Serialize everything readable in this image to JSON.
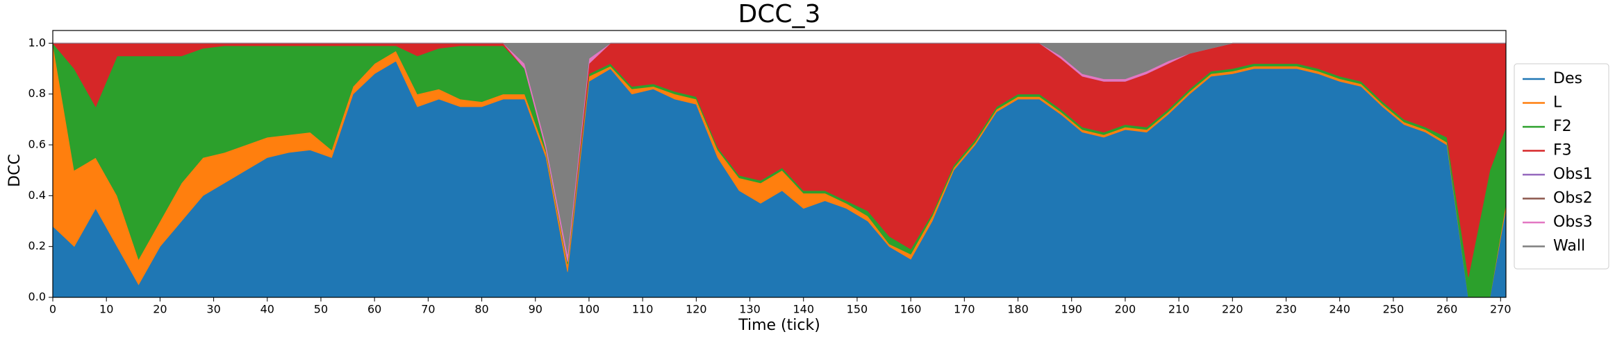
{
  "chart_data": {
    "type": "stackplot",
    "title": "DCC_3",
    "x_label": "Time (tick)",
    "y_label": "DCC",
    "xlim": [
      0,
      271
    ],
    "ylim": [
      0,
      1.05
    ],
    "xticks": [
      0,
      10,
      20,
      30,
      40,
      50,
      60,
      70,
      80,
      90,
      100,
      110,
      120,
      130,
      140,
      150,
      160,
      170,
      180,
      190,
      200,
      210,
      220,
      230,
      240,
      250,
      260,
      270
    ],
    "yticks": [
      {
        "value": 0,
        "label": "0.0"
      },
      {
        "value": 0.2,
        "label": "0.2"
      },
      {
        "value": 0.4,
        "label": "0.4"
      },
      {
        "value": 0.6,
        "label": "0.6"
      },
      {
        "value": 0.8,
        "label": "0.8"
      },
      {
        "value": 1,
        "label": "1.0"
      }
    ],
    "legend": "outside right",
    "x": [
      0,
      4,
      8,
      12,
      16,
      20,
      24,
      28,
      32,
      36,
      40,
      44,
      48,
      52,
      56,
      60,
      64,
      68,
      72,
      76,
      80,
      84,
      88,
      92,
      96,
      100,
      104,
      108,
      112,
      116,
      120,
      124,
      128,
      132,
      136,
      140,
      144,
      148,
      152,
      156,
      160,
      164,
      168,
      172,
      176,
      180,
      184,
      188,
      192,
      196,
      200,
      204,
      208,
      212,
      216,
      220,
      224,
      228,
      232,
      236,
      240,
      244,
      248,
      252,
      256,
      260,
      264,
      268,
      271
    ],
    "series": [
      {
        "name": "Des",
        "color": "#1f77b4",
        "values": [
          0.28,
          0.2,
          0.35,
          0.2,
          0.05,
          0.2,
          0.3,
          0.4,
          0.45,
          0.5,
          0.55,
          0.57,
          0.58,
          0.55,
          0.8,
          0.88,
          0.93,
          0.75,
          0.78,
          0.75,
          0.75,
          0.78,
          0.78,
          0.55,
          0.1,
          0.85,
          0.9,
          0.8,
          0.82,
          0.78,
          0.76,
          0.55,
          0.42,
          0.37,
          0.42,
          0.35,
          0.38,
          0.35,
          0.3,
          0.2,
          0.15,
          0.3,
          0.5,
          0.6,
          0.73,
          0.78,
          0.78,
          0.72,
          0.65,
          0.63,
          0.66,
          0.65,
          0.72,
          0.8,
          0.87,
          0.88,
          0.9,
          0.9,
          0.9,
          0.88,
          0.85,
          0.83,
          0.75,
          0.68,
          0.65,
          0.6,
          0,
          0,
          0.35
        ]
      },
      {
        "name": "L",
        "color": "#ff7f0e",
        "values": [
          0.72,
          0.3,
          0.2,
          0.2,
          0.1,
          0.1,
          0.15,
          0.15,
          0.12,
          0.1,
          0.08,
          0.07,
          0.07,
          0.03,
          0.03,
          0.04,
          0.04,
          0.05,
          0.04,
          0.03,
          0.02,
          0.02,
          0.02,
          0.02,
          0.03,
          0.02,
          0.01,
          0.02,
          0.01,
          0.02,
          0.02,
          0.03,
          0.05,
          0.08,
          0.08,
          0.06,
          0.03,
          0.02,
          0.02,
          0.01,
          0.02,
          0.02,
          0.01,
          0.01,
          0.01,
          0.01,
          0.01,
          0.01,
          0.01,
          0.01,
          0.01,
          0.01,
          0.01,
          0.01,
          0.01,
          0.01,
          0.01,
          0.01,
          0.01,
          0.01,
          0.01,
          0.01,
          0.01,
          0.01,
          0.01,
          0.01,
          0,
          0,
          0.02
        ]
      },
      {
        "name": "F2",
        "color": "#2ca02c",
        "values": [
          0,
          0.4,
          0.2,
          0.55,
          0.8,
          0.65,
          0.5,
          0.43,
          0.42,
          0.39,
          0.36,
          0.35,
          0.34,
          0.41,
          0.16,
          0.07,
          0.02,
          0.15,
          0.16,
          0.21,
          0.22,
          0.19,
          0.1,
          0.01,
          0.01,
          0.01,
          0.01,
          0.01,
          0.01,
          0.01,
          0.01,
          0.01,
          0.01,
          0.01,
          0.01,
          0.01,
          0.01,
          0.01,
          0.02,
          0.03,
          0.02,
          0.01,
          0.01,
          0.01,
          0.01,
          0.01,
          0.01,
          0.01,
          0.01,
          0.01,
          0.01,
          0.01,
          0.01,
          0.01,
          0.01,
          0.01,
          0.01,
          0.01,
          0.01,
          0.01,
          0.01,
          0.01,
          0.01,
          0.01,
          0.01,
          0.02,
          0.08,
          0.5,
          0.3
        ]
      },
      {
        "name": "F3",
        "color": "#d62728",
        "values": [
          0,
          0.1,
          0.25,
          0.05,
          0.05,
          0.05,
          0.05,
          0.02,
          0.01,
          0.01,
          0.01,
          0.01,
          0.01,
          0.01,
          0.01,
          0.01,
          0.01,
          0.05,
          0.02,
          0.01,
          0.01,
          0.01,
          0,
          0,
          0,
          0.04,
          0.08,
          0.17,
          0.16,
          0.19,
          0.21,
          0.41,
          0.52,
          0.54,
          0.49,
          0.58,
          0.58,
          0.62,
          0.66,
          0.76,
          0.81,
          0.67,
          0.48,
          0.38,
          0.25,
          0.2,
          0.2,
          0.2,
          0.2,
          0.2,
          0.17,
          0.21,
          0.18,
          0.14,
          0.09,
          0.1,
          0.08,
          0.08,
          0.08,
          0.1,
          0.13,
          0.15,
          0.23,
          0.3,
          0.33,
          0.37,
          0.92,
          0.5,
          0.33
        ]
      },
      {
        "name": "Obs1",
        "color": "#9467bd",
        "values": [
          0,
          0,
          0,
          0,
          0,
          0,
          0,
          0,
          0,
          0,
          0,
          0,
          0,
          0,
          0,
          0,
          0,
          0,
          0,
          0,
          0,
          0,
          0,
          0,
          0,
          0,
          0,
          0,
          0,
          0,
          0,
          0,
          0,
          0,
          0,
          0,
          0,
          0,
          0,
          0,
          0,
          0,
          0,
          0,
          0,
          0,
          0,
          0,
          0,
          0,
          0,
          0,
          0,
          0,
          0,
          0,
          0,
          0,
          0,
          0,
          0,
          0,
          0,
          0,
          0,
          0,
          0,
          0,
          0
        ]
      },
      {
        "name": "Obs2",
        "color": "#8c564b",
        "values": [
          0,
          0,
          0,
          0,
          0,
          0,
          0,
          0,
          0,
          0,
          0,
          0,
          0,
          0,
          0,
          0,
          0,
          0,
          0,
          0,
          0,
          0,
          0,
          0,
          0,
          0,
          0,
          0,
          0,
          0,
          0,
          0,
          0,
          0,
          0,
          0,
          0,
          0,
          0,
          0,
          0,
          0,
          0,
          0,
          0,
          0,
          0,
          0,
          0,
          0,
          0,
          0,
          0,
          0,
          0,
          0,
          0,
          0,
          0,
          0,
          0,
          0,
          0,
          0,
          0,
          0,
          0,
          0,
          0
        ]
      },
      {
        "name": "Obs3",
        "color": "#e377c2",
        "values": [
          0,
          0,
          0,
          0,
          0,
          0,
          0,
          0,
          0,
          0,
          0,
          0,
          0,
          0,
          0,
          0,
          0,
          0,
          0,
          0,
          0,
          0,
          0.02,
          0.02,
          0.03,
          0.02,
          0,
          0,
          0,
          0,
          0,
          0,
          0,
          0,
          0,
          0,
          0,
          0,
          0,
          0,
          0,
          0,
          0,
          0,
          0,
          0,
          0,
          0.01,
          0.01,
          0.01,
          0.01,
          0.01,
          0.01,
          0,
          0,
          0,
          0,
          0,
          0,
          0,
          0,
          0,
          0,
          0,
          0,
          0,
          0,
          0,
          0
        ]
      },
      {
        "name": "Wall",
        "color": "#7f7f7f",
        "values": [
          0,
          0,
          0,
          0,
          0,
          0,
          0,
          0,
          0,
          0,
          0,
          0,
          0,
          0,
          0,
          0,
          0,
          0,
          0,
          0,
          0,
          0,
          0.08,
          0.4,
          0.83,
          0.06,
          0,
          0,
          0,
          0,
          0,
          0,
          0,
          0,
          0,
          0,
          0,
          0,
          0,
          0,
          0,
          0,
          0,
          0,
          0,
          0,
          0,
          0.05,
          0.12,
          0.14,
          0.14,
          0.11,
          0.07,
          0.04,
          0.02,
          0,
          0,
          0,
          0,
          0,
          0,
          0,
          0,
          0,
          0,
          0,
          0,
          0,
          0
        ]
      }
    ]
  }
}
